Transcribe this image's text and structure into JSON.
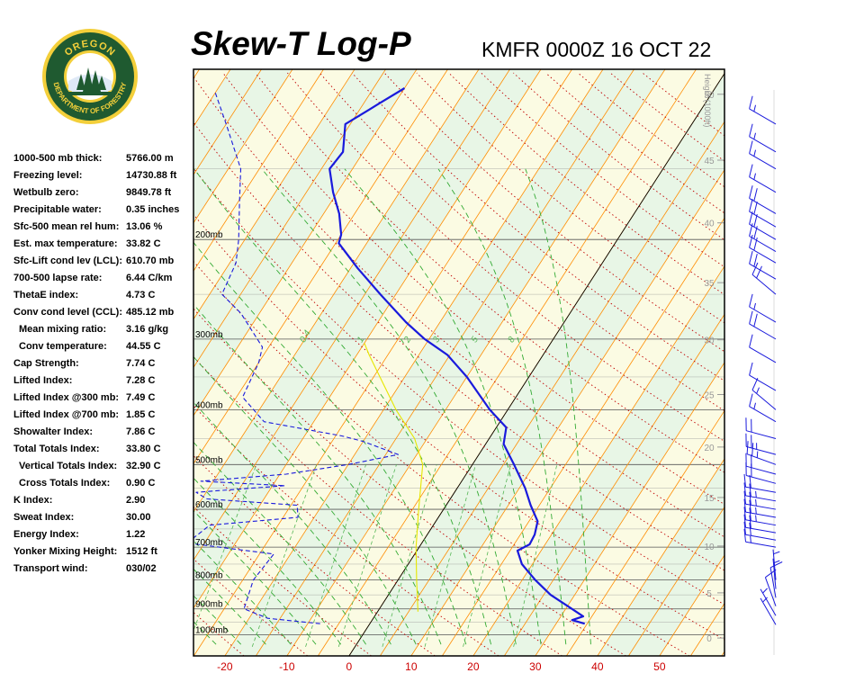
{
  "header": {
    "title": "Skew-T Log-P",
    "station": "KMFR 0000Z 16 OCT 22"
  },
  "logo": {
    "top_text": "OREGON",
    "bottom_text": "DEPARTMENT OF FORESTRY"
  },
  "stats": [
    {
      "label": "1000-500 mb thick:",
      "value": "5766.00 m"
    },
    {
      "label": "Freezing level:",
      "value": "14730.88 ft"
    },
    {
      "label": "Wetbulb zero:",
      "value": "9849.78 ft"
    },
    {
      "label": "Precipitable water:",
      "value": "0.35 inches"
    },
    {
      "label": "Sfc-500 mean rel hum:",
      "value": "13.06 %"
    },
    {
      "label": "Est. max temperature:",
      "value": "33.82 C"
    },
    {
      "label": "Sfc-Lift cond lev (LCL):",
      "value": "610.70 mb"
    },
    {
      "label": "700-500 lapse rate:",
      "value": "6.44 C/km"
    },
    {
      "label": "ThetaE index:",
      "value": "4.73 C"
    },
    {
      "label": "Conv cond level (CCL):",
      "value": "485.12 mb"
    },
    {
      "label": "Mean mixing ratio:",
      "value": "3.16 g/kg",
      "indent": true
    },
    {
      "label": "Conv temperature:",
      "value": "44.55 C",
      "indent": true
    },
    {
      "label": "Cap Strength:",
      "value": "7.74 C"
    },
    {
      "label": "Lifted Index:",
      "value": "7.28 C"
    },
    {
      "label": "Lifted Index @300 mb:",
      "value": "7.49 C"
    },
    {
      "label": "Lifted Index @700 mb:",
      "value": "1.85 C"
    },
    {
      "label": "Showalter Index:",
      "value": "7.86 C"
    },
    {
      "label": "Total Totals Index:",
      "value": "33.80 C"
    },
    {
      "label": "Vertical Totals Index:",
      "value": "32.90 C",
      "indent": true
    },
    {
      "label": "Cross Totals Index:",
      "value": "0.90 C",
      "indent": true
    },
    {
      "label": "K Index:",
      "value": "2.90"
    },
    {
      "label": "Sweat Index:",
      "value": "30.00"
    },
    {
      "label": "Energy Index:",
      "value": "1.22"
    },
    {
      "label": "Yonker Mixing Height:",
      "value": "1512 ft"
    },
    {
      "label": "Transport wind:",
      "value": "030/02"
    }
  ],
  "chart_data": {
    "type": "line",
    "xlabel": "",
    "ylabel": "",
    "x_ticks": [
      -20,
      -10,
      0,
      10,
      20,
      30,
      40,
      50
    ],
    "pressure_levels": [
      {
        "p": 200,
        "label": "200mb"
      },
      {
        "p": 300,
        "label": "300mb"
      },
      {
        "p": 400,
        "label": "400mb"
      },
      {
        "p": 500,
        "label": "500mb"
      },
      {
        "p": 600,
        "label": "600mb"
      },
      {
        "p": 700,
        "label": "700mb"
      },
      {
        "p": 800,
        "label": "800mb"
      },
      {
        "p": 900,
        "label": "900mb"
      },
      {
        "p": 1000,
        "label": "1000mb"
      }
    ],
    "height_axis": {
      "title": "Height (1000ft)",
      "ticks": [
        0,
        5,
        10,
        15,
        20,
        25,
        30,
        35,
        40,
        45,
        50
      ]
    },
    "mixing_ratio_labels": [
      "0.4",
      "1",
      "2",
      "3",
      "5",
      "8"
    ],
    "series": [
      {
        "color": "#1a1adc",
        "style": "solid",
        "points": [
          [
            956,
            34.6
          ],
          [
            942,
            32.2
          ],
          [
            928,
            33.6
          ],
          [
            900,
            31.0
          ],
          [
            850,
            26.1
          ],
          [
            800,
            22.1
          ],
          [
            750,
            18.3
          ],
          [
            710,
            16.2
          ],
          [
            692,
            17.5
          ],
          [
            665,
            17.3
          ],
          [
            630,
            16.4
          ],
          [
            590,
            13.6
          ],
          [
            550,
            10.9
          ],
          [
            500,
            6.7
          ],
          [
            460,
            2.9
          ],
          [
            430,
            1.6
          ],
          [
            400,
            -2.9
          ],
          [
            350,
            -10.0
          ],
          [
            320,
            -15.4
          ],
          [
            300,
            -20.7
          ],
          [
            280,
            -25.5
          ],
          [
            250,
            -32.5
          ],
          [
            225,
            -38.8
          ],
          [
            203,
            -44.5
          ],
          [
            196,
            -45.0
          ],
          [
            180,
            -47.5
          ],
          [
            165,
            -50.7
          ],
          [
            150,
            -53.7
          ],
          [
            140,
            -53.3
          ],
          [
            125,
            -55.8
          ],
          [
            118,
            -53.5
          ],
          [
            115,
            -52.5
          ],
          [
            108,
            -50.0
          ]
        ]
      },
      {
        "color": "#1a1adc",
        "style": "dashed",
        "points": [
          [
            956,
            -8.0
          ],
          [
            935,
            -17.0
          ],
          [
            900,
            -21.8
          ],
          [
            800,
            -23.3
          ],
          [
            720,
            -22.7
          ],
          [
            690,
            -37.0
          ],
          [
            680,
            -37.5
          ],
          [
            640,
            -36.0
          ],
          [
            620,
            -22.6
          ],
          [
            590,
            -24.0
          ],
          [
            575,
            -39.2
          ],
          [
            560,
            -41.6
          ],
          [
            545,
            -28.0
          ],
          [
            535,
            -42.0
          ],
          [
            520,
            -29.0
          ],
          [
            500,
            -20.0
          ],
          [
            480,
            -13.0
          ],
          [
            455,
            -20.0
          ],
          [
            445,
            -24.0
          ],
          [
            420,
            -38.0
          ],
          [
            380,
            -44.0
          ],
          [
            330,
            -45.0
          ],
          [
            310,
            -46.0
          ],
          [
            270,
            -53.0
          ],
          [
            250,
            -58.0
          ],
          [
            220,
            -59.0
          ],
          [
            200,
            -61.0
          ],
          [
            170,
            -65.0
          ],
          [
            150,
            -68.0
          ],
          [
            125,
            -75.0
          ],
          [
            110,
            -80.0
          ]
        ]
      },
      {
        "color": "#e6e600",
        "style": "solid",
        "points": [
          [
            910,
            6.5
          ],
          [
            800,
            3.0
          ],
          [
            700,
            -0.5
          ],
          [
            600,
            -4.0
          ],
          [
            500,
            -8.0
          ],
          [
            450,
            -12.0
          ],
          [
            400,
            -18.0
          ],
          [
            350,
            -24.0
          ],
          [
            320,
            -28.0
          ],
          [
            305,
            -30.0
          ]
        ]
      }
    ],
    "wind_barbs": [
      {
        "p": 960,
        "dir": 330,
        "spd": 5
      },
      {
        "p": 925,
        "dir": 330,
        "spd": 5
      },
      {
        "p": 890,
        "dir": 340,
        "spd": 10
      },
      {
        "p": 860,
        "dir": 350,
        "spd": 10
      },
      {
        "p": 830,
        "dir": 355,
        "spd": 5
      },
      {
        "p": 800,
        "dir": 355,
        "spd": 5
      },
      {
        "p": 700,
        "dir": 280,
        "spd": 15
      },
      {
        "p": 680,
        "dir": 280,
        "spd": 20
      },
      {
        "p": 660,
        "dir": 280,
        "spd": 20
      },
      {
        "p": 640,
        "dir": 280,
        "spd": 25
      },
      {
        "p": 620,
        "dir": 280,
        "spd": 25
      },
      {
        "p": 600,
        "dir": 280,
        "spd": 25
      },
      {
        "p": 580,
        "dir": 280,
        "spd": 25
      },
      {
        "p": 560,
        "dir": 280,
        "spd": 20
      },
      {
        "p": 540,
        "dir": 285,
        "spd": 20
      },
      {
        "p": 520,
        "dir": 285,
        "spd": 20
      },
      {
        "p": 500,
        "dir": 290,
        "spd": 25
      },
      {
        "p": 480,
        "dir": 285,
        "spd": 25
      },
      {
        "p": 450,
        "dir": 285,
        "spd": 20
      },
      {
        "p": 420,
        "dir": 300,
        "spd": 15
      },
      {
        "p": 400,
        "dir": 310,
        "spd": 15
      },
      {
        "p": 370,
        "dir": 300,
        "spd": 10
      },
      {
        "p": 330,
        "dir": 300,
        "spd": 10
      },
      {
        "p": 300,
        "dir": 300,
        "spd": 20
      },
      {
        "p": 280,
        "dir": 300,
        "spd": 15
      },
      {
        "p": 250,
        "dir": 310,
        "spd": 20
      },
      {
        "p": 235,
        "dir": 300,
        "spd": 20
      },
      {
        "p": 220,
        "dir": 300,
        "spd": 20
      },
      {
        "p": 210,
        "dir": 300,
        "spd": 20
      },
      {
        "p": 200,
        "dir": 300,
        "spd": 20
      },
      {
        "p": 190,
        "dir": 300,
        "spd": 20
      },
      {
        "p": 180,
        "dir": 300,
        "spd": 20
      },
      {
        "p": 165,
        "dir": 300,
        "spd": 15
      },
      {
        "p": 150,
        "dir": 300,
        "spd": 15
      },
      {
        "p": 140,
        "dir": 300,
        "spd": 15
      },
      {
        "p": 125,
        "dir": 300,
        "spd": 15
      }
    ]
  },
  "colors": {
    "temperature": "#1a1adc",
    "dewpoint": "#1a1adc",
    "parcel": "#e6e600",
    "isotherm": "#ff8c00",
    "dry_adiabat": "#c00000",
    "moist_adiabat": "#33aa33",
    "tick_label": "#cc0000",
    "height_label": "#999999",
    "band_yellow": "#fbfbe3",
    "band_green": "#e8f6e6",
    "logo_green": "#1f5a30",
    "logo_gold": "#f3cf3a"
  }
}
